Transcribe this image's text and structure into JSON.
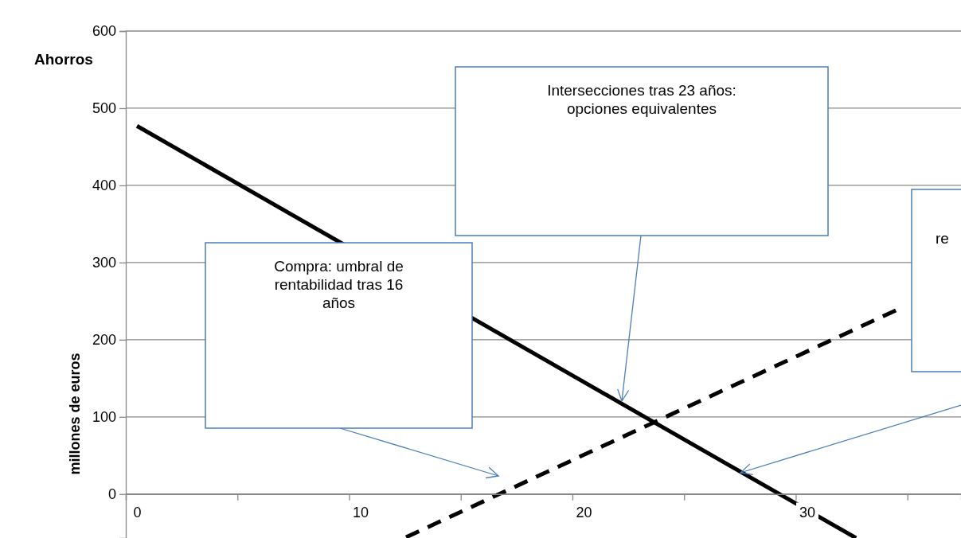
{
  "chart_data": {
    "type": "line",
    "title": "Ahorros",
    "ylabel": "millones de euros",
    "xlim": [
      -0.5,
      36.9
    ],
    "ylim": [
      -57,
      600
    ],
    "xticks": [
      {
        "value": -0.5,
        "label": null
      },
      {
        "value": 0,
        "label": "0"
      },
      {
        "value": 4.5,
        "label": null
      },
      {
        "value": 9.5,
        "label": null
      },
      {
        "value": 10,
        "label": "10"
      },
      {
        "value": 14.5,
        "label": null
      },
      {
        "value": 19.5,
        "label": null
      },
      {
        "value": 20,
        "label": "20"
      },
      {
        "value": 24.5,
        "label": null
      },
      {
        "value": 29.5,
        "label": null
      },
      {
        "value": 30,
        "label": "30"
      },
      {
        "value": 34.5,
        "label": null
      }
    ],
    "yticks": [
      0,
      100,
      200,
      300,
      400,
      500,
      600
    ],
    "grid": "y",
    "marker": "none",
    "series": [
      {
        "color": "#000000",
        "line_style": "solid",
        "x": [
          0,
          32.2
        ],
        "values": [
          477,
          -57
        ]
      },
      {
        "color": "#000000",
        "line_style": "dashed",
        "x": [
          12.05,
          34.2
        ],
        "values": [
          -56,
          241
        ]
      }
    ],
    "annotations": [
      "Compra: umbral de rentabilidad tras 16 años",
      "Intersecciones tras 23 años: opciones equivalentes",
      "re"
    ]
  }
}
